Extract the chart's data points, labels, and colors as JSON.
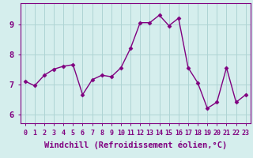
{
  "x": [
    0,
    1,
    2,
    3,
    4,
    5,
    6,
    7,
    8,
    9,
    10,
    11,
    12,
    13,
    14,
    15,
    16,
    17,
    18,
    19,
    20,
    21,
    22,
    23
  ],
  "y": [
    7.1,
    6.95,
    7.3,
    7.5,
    7.6,
    7.65,
    6.65,
    7.15,
    7.3,
    7.25,
    7.55,
    8.2,
    9.05,
    9.05,
    9.3,
    8.95,
    9.2,
    7.55,
    7.05,
    6.2,
    6.4,
    7.55,
    6.4,
    6.65
  ],
  "line_color": "#800080",
  "marker": "D",
  "marker_size": 2.5,
  "bg_color": "#d5eeed",
  "grid_color": "#aed4d4",
  "xlabel": "Windchill (Refroidissement éolien,°C)",
  "xlabel_fontsize": 7.5,
  "ylabel_ticks": [
    6,
    7,
    8,
    9
  ],
  "xtick_labels": [
    "0",
    "1",
    "2",
    "3",
    "4",
    "5",
    "6",
    "7",
    "8",
    "9",
    "10",
    "11",
    "12",
    "13",
    "14",
    "15",
    "16",
    "17",
    "18",
    "19",
    "20",
    "21",
    "22",
    "23"
  ],
  "ylim": [
    5.7,
    9.7
  ],
  "xlim": [
    -0.5,
    23.5
  ],
  "ytick_fontsize": 7.5,
  "xtick_fontsize": 6.0,
  "line_width": 1.0
}
